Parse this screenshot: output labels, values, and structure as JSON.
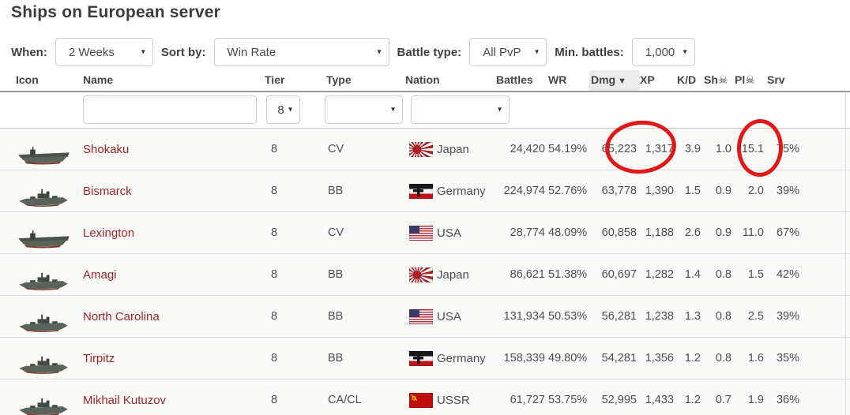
{
  "page": {
    "title": "Ships on European server"
  },
  "filter_bar": {
    "caret_icon": "▾",
    "when": {
      "label": "When:",
      "value": "2 Weeks"
    },
    "sort_by": {
      "label": "Sort by:",
      "value": "Win Rate"
    },
    "battle_type": {
      "label": "Battle type:",
      "value": "All PvP"
    },
    "min_battles": {
      "label": "Min. battles:",
      "value": "1,000"
    }
  },
  "table": {
    "sorted_column": "dmg",
    "sort_arrow": "▼",
    "columns": [
      {
        "key": "icon",
        "label": "Icon"
      },
      {
        "key": "name",
        "label": "Name"
      },
      {
        "key": "tier",
        "label": "Tier"
      },
      {
        "key": "type",
        "label": "Type"
      },
      {
        "key": "nation",
        "label": "Nation"
      },
      {
        "key": "battles",
        "label": "Battles"
      },
      {
        "key": "wr",
        "label": "WR"
      },
      {
        "key": "dmg",
        "label": "Dmg"
      },
      {
        "key": "xp",
        "label": "XP"
      },
      {
        "key": "kd",
        "label": "K/D"
      },
      {
        "key": "sh",
        "label": "Sh☠"
      },
      {
        "key": "pl",
        "label": "Pl☠"
      },
      {
        "key": "srv",
        "label": "Srv"
      }
    ],
    "column_filters": {
      "name": "",
      "tier": "8",
      "type": "",
      "nation": ""
    },
    "rows": [
      {
        "icon": "cv",
        "name": "Shokaku",
        "tier": "8",
        "type": "CV",
        "nation": "Japan",
        "flag": "japan",
        "battles": "24,420",
        "wr": "54.19%",
        "dmg": "65,223",
        "xp": "1,317",
        "kd": "3.9",
        "sh": "1.0",
        "pl": "15.1",
        "srv": "75%"
      },
      {
        "icon": "bb",
        "name": "Bismarck",
        "tier": "8",
        "type": "BB",
        "nation": "Germany",
        "flag": "germany",
        "battles": "224,974",
        "wr": "52.76%",
        "dmg": "63,778",
        "xp": "1,390",
        "kd": "1.5",
        "sh": "0.9",
        "pl": "2.0",
        "srv": "39%"
      },
      {
        "icon": "cv",
        "name": "Lexington",
        "tier": "8",
        "type": "CV",
        "nation": "USA",
        "flag": "usa",
        "battles": "28,774",
        "wr": "48.09%",
        "dmg": "60,858",
        "xp": "1,188",
        "kd": "2.6",
        "sh": "0.9",
        "pl": "11.0",
        "srv": "67%"
      },
      {
        "icon": "bb",
        "name": "Amagi",
        "tier": "8",
        "type": "BB",
        "nation": "Japan",
        "flag": "japan",
        "battles": "86,621",
        "wr": "51.38%",
        "dmg": "60,697",
        "xp": "1,282",
        "kd": "1.4",
        "sh": "0.8",
        "pl": "1.5",
        "srv": "42%"
      },
      {
        "icon": "bb",
        "name": "North Carolina",
        "tier": "8",
        "type": "BB",
        "nation": "USA",
        "flag": "usa",
        "battles": "131,934",
        "wr": "50.53%",
        "dmg": "56,281",
        "xp": "1,238",
        "kd": "1.3",
        "sh": "0.8",
        "pl": "2.5",
        "srv": "39%"
      },
      {
        "icon": "bb",
        "name": "Tirpitz",
        "tier": "8",
        "type": "BB",
        "nation": "Germany",
        "flag": "germany",
        "battles": "158,339",
        "wr": "49.80%",
        "dmg": "54,281",
        "xp": "1,356",
        "kd": "1.2",
        "sh": "0.8",
        "pl": "1.6",
        "srv": "35%"
      },
      {
        "icon": "bb",
        "name": "Mikhail Kutuzov",
        "tier": "8",
        "type": "CA/CL",
        "nation": "USSR",
        "flag": "ussr",
        "battles": "61,727",
        "wr": "53.75%",
        "dmg": "52,995",
        "xp": "1,433",
        "kd": "1.2",
        "sh": "0.7",
        "pl": "1.9",
        "srv": "36%"
      }
    ]
  },
  "annotations": {
    "circle_color": "#e21717",
    "circled_values": [
      "65,223",
      "1.0"
    ]
  }
}
